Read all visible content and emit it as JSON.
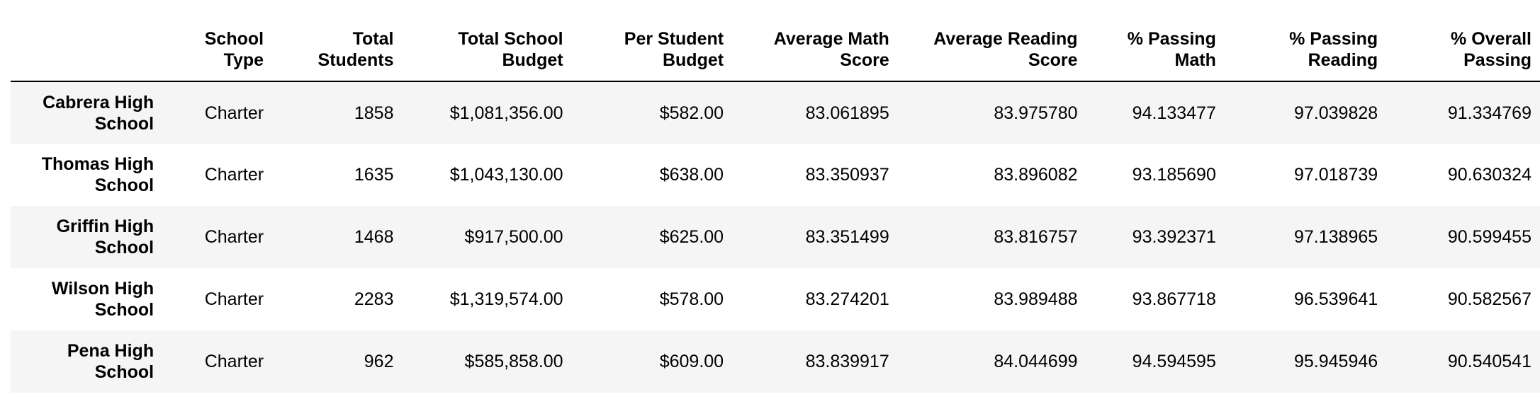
{
  "table": {
    "headers": {
      "index": "",
      "school_type": [
        "School",
        "Type"
      ],
      "total_students": [
        "Total",
        "Students"
      ],
      "total_budget": [
        "Total School",
        "Budget"
      ],
      "per_student_budget": [
        "Per Student",
        "Budget"
      ],
      "avg_math": [
        "Average Math",
        "Score"
      ],
      "avg_reading": [
        "Average Reading",
        "Score"
      ],
      "pct_math": [
        "% Passing",
        "Math"
      ],
      "pct_reading": [
        "% Passing",
        "Reading"
      ],
      "pct_overall": [
        "% Overall",
        "Passing"
      ]
    },
    "rows": [
      {
        "name": [
          "Cabrera High",
          "School"
        ],
        "school_type": "Charter",
        "total_students": "1858",
        "total_budget": "$1,081,356.00",
        "per_student_budget": "$582.00",
        "avg_math": "83.061895",
        "avg_reading": "83.975780",
        "pct_math": "94.133477",
        "pct_reading": "97.039828",
        "pct_overall": "91.334769"
      },
      {
        "name": [
          "Thomas High",
          "School"
        ],
        "school_type": "Charter",
        "total_students": "1635",
        "total_budget": "$1,043,130.00",
        "per_student_budget": "$638.00",
        "avg_math": "83.350937",
        "avg_reading": "83.896082",
        "pct_math": "93.185690",
        "pct_reading": "97.018739",
        "pct_overall": "90.630324"
      },
      {
        "name": [
          "Griffin High",
          "School"
        ],
        "school_type": "Charter",
        "total_students": "1468",
        "total_budget": "$917,500.00",
        "per_student_budget": "$625.00",
        "avg_math": "83.351499",
        "avg_reading": "83.816757",
        "pct_math": "93.392371",
        "pct_reading": "97.138965",
        "pct_overall": "90.599455"
      },
      {
        "name": [
          "Wilson High",
          "School"
        ],
        "school_type": "Charter",
        "total_students": "2283",
        "total_budget": "$1,319,574.00",
        "per_student_budget": "$578.00",
        "avg_math": "83.274201",
        "avg_reading": "83.989488",
        "pct_math": "93.867718",
        "pct_reading": "96.539641",
        "pct_overall": "90.582567"
      },
      {
        "name": [
          "Pena High",
          "School"
        ],
        "school_type": "Charter",
        "total_students": "962",
        "total_budget": "$585,858.00",
        "per_student_budget": "$609.00",
        "avg_math": "83.839917",
        "avg_reading": "84.044699",
        "pct_math": "94.594595",
        "pct_reading": "95.945946",
        "pct_overall": "90.540541"
      }
    ]
  }
}
